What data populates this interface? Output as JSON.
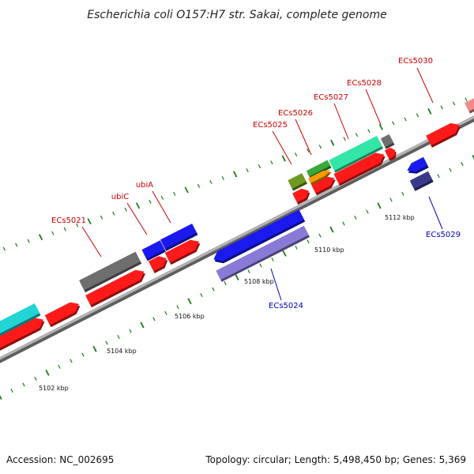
{
  "title": "Escherichia coli O157:H7 str. Sakai, complete genome",
  "footer": {
    "accession": "Accession: NC_002695",
    "summary": "Topology: circular; Length: 5,498,450 bp; Genes: 5,369"
  },
  "ruler": {
    "tick_color": "#1a7a1a",
    "labels": [
      "5102 kbp",
      "5104 kbp",
      "5106 kbp",
      "5108 kbp",
      "5110 kbp",
      "5112 kbp"
    ]
  },
  "gene_labels": {
    "forward_color": "#cc0000",
    "reverse_color": "#0000bb",
    "items": [
      {
        "text": "ECs5021",
        "strand": "forward"
      },
      {
        "text": "ubiC",
        "strand": "forward"
      },
      {
        "text": "ubiA",
        "strand": "forward"
      },
      {
        "text": "ECs5025",
        "strand": "forward"
      },
      {
        "text": "ECs5026",
        "strand": "forward"
      },
      {
        "text": "ECs5027",
        "strand": "forward"
      },
      {
        "text": "ECs5028",
        "strand": "forward"
      },
      {
        "text": "ECs5030",
        "strand": "forward"
      },
      {
        "text": "ECs5024",
        "strand": "reverse"
      },
      {
        "text": "ECs5029",
        "strand": "reverse"
      }
    ]
  },
  "colors": {
    "backbone": "#8a8a8a",
    "cds": "#ff1a1a",
    "reverse_blue": "#1a1aee",
    "lavender": "#8a7ad8",
    "navy": "#3a3a8a",
    "cyan": "#22d4d4",
    "mint": "#33e6a8",
    "gray": "#6e6e6e",
    "olive": "#6e9a22",
    "green": "#3aa83a",
    "orange": "#ff9a00",
    "pink": "#f08a8a"
  }
}
